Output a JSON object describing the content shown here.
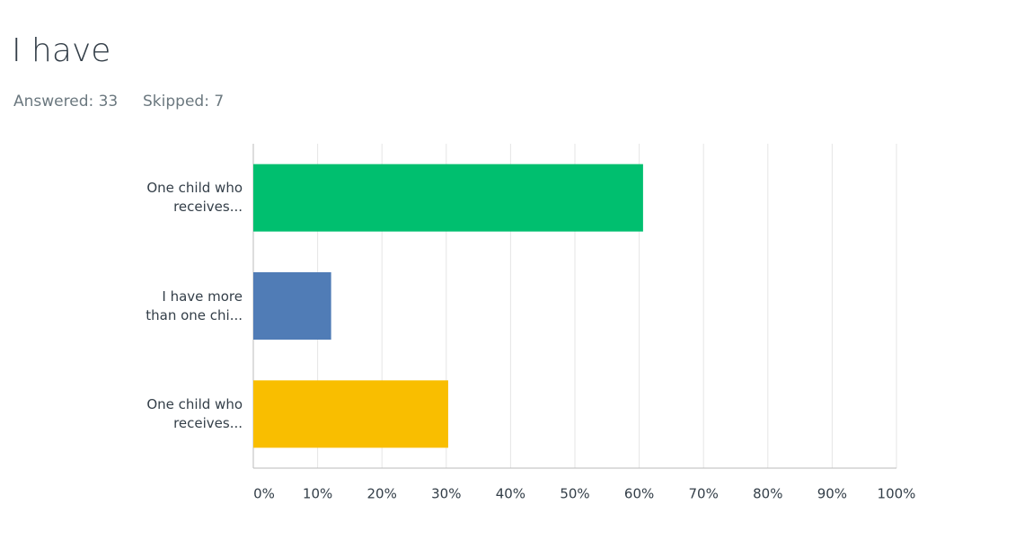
{
  "header": {
    "title": "I have",
    "answered": "Answered: 33",
    "skipped": "Skipped: 7"
  },
  "chart_data": {
    "type": "bar",
    "orientation": "horizontal",
    "categories": [
      "One child who\nreceives...",
      "I have more\nthan one chi...",
      "One child who\nreceives..."
    ],
    "series": [
      {
        "name": null,
        "values": [
          60.6,
          12.1,
          30.3
        ]
      }
    ],
    "colors": [
      "#00bf6f",
      "#507cb6",
      "#f9be00"
    ],
    "xlim": [
      0,
      100
    ],
    "xticks": [
      {
        "value": 0,
        "label": "0%"
      },
      {
        "value": 10,
        "label": "10%"
      },
      {
        "value": 20,
        "label": "20%"
      },
      {
        "value": 30,
        "label": "30%"
      },
      {
        "value": 40,
        "label": "40%"
      },
      {
        "value": 50,
        "label": "50%"
      },
      {
        "value": 60,
        "label": "60%"
      },
      {
        "value": 70,
        "label": "70%"
      },
      {
        "value": 80,
        "label": "80%"
      },
      {
        "value": 90,
        "label": "90%"
      },
      {
        "value": 100,
        "label": "100%"
      }
    ],
    "grid": true
  }
}
